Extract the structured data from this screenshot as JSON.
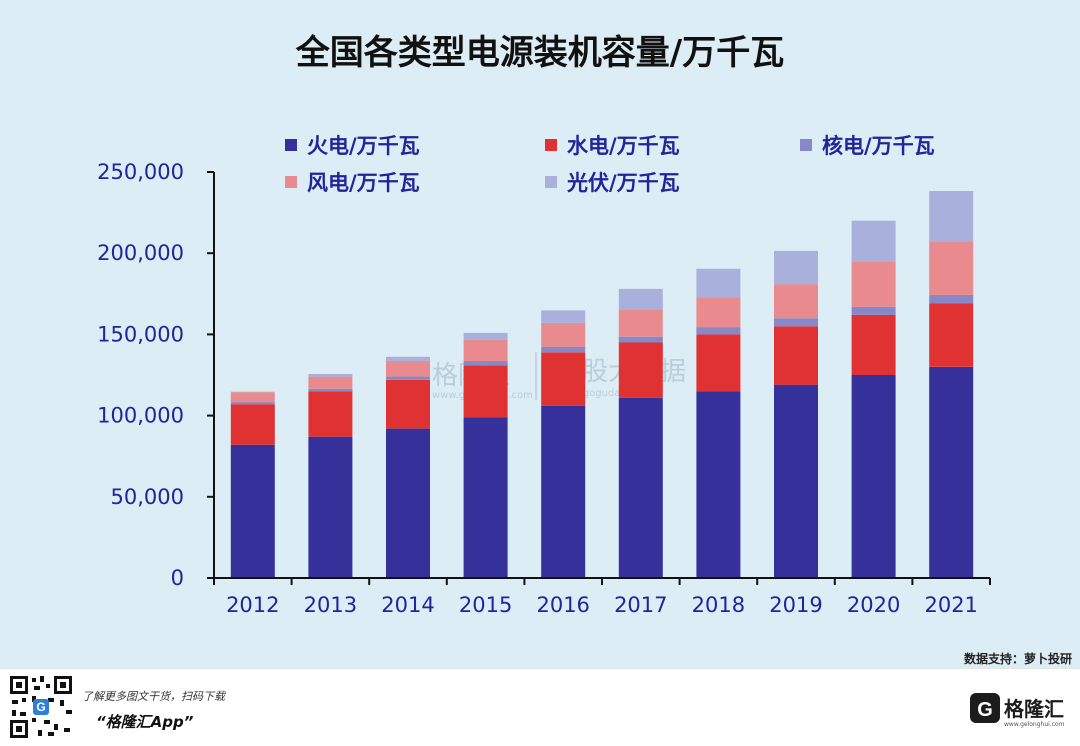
{
  "chart_data": {
    "type": "bar",
    "stacked": true,
    "title": "全国各类型电源装机容量/万千瓦",
    "categories": [
      "2012",
      "2013",
      "2014",
      "2015",
      "2016",
      "2017",
      "2018",
      "2019",
      "2020",
      "2021"
    ],
    "series": [
      {
        "name": "火电/万千瓦",
        "color": "#35309a",
        "values": [
          82000,
          87000,
          92000,
          99000,
          106000,
          111000,
          115000,
          119000,
          125000,
          130000
        ]
      },
      {
        "name": "水电/万千瓦",
        "color": "#e03232",
        "values": [
          25000,
          28000,
          30000,
          32000,
          33000,
          34000,
          35000,
          36000,
          37000,
          39000
        ]
      },
      {
        "name": "核电/万千瓦",
        "color": "#8888c8",
        "values": [
          1300,
          1500,
          2000,
          2600,
          3400,
          3600,
          4500,
          4900,
          5000,
          5300
        ]
      },
      {
        "name": "风电/万千瓦",
        "color": "#e88a8e",
        "values": [
          6100,
          7500,
          9600,
          13000,
          14700,
          16400,
          18400,
          21000,
          28000,
          33000
        ]
      },
      {
        "name": "光伏/万千瓦",
        "color": "#a9b0dc",
        "values": [
          300,
          1600,
          2600,
          4300,
          7700,
          13000,
          17500,
          20500,
          25000,
          31000
        ]
      }
    ],
    "ylim": [
      0,
      250000
    ],
    "yticks": [
      0,
      50000,
      100000,
      150000,
      200000,
      250000
    ],
    "ytick_labels": [
      "0",
      "50,000",
      "100,000",
      "150,000",
      "200,000",
      "250,000"
    ],
    "xlabel": "",
    "ylabel": "",
    "legend_position": "top"
  },
  "watermark": {
    "brand": "格隆汇",
    "product": "勾股大数据",
    "url": "www.gogudata.com",
    "brand_url": "www.gelonghui.com"
  },
  "source": "数据支持：萝卜投研",
  "footer": {
    "line1": "了解更多图文干货，扫码下载",
    "line2": "“格隆汇App”",
    "logo_text": "格隆汇",
    "logo_letter": "G",
    "logo_url": "www.gelonghui.com"
  },
  "colors": {
    "background": "#dcedf6",
    "axis": "#111111",
    "tick_text": "#23239a"
  }
}
